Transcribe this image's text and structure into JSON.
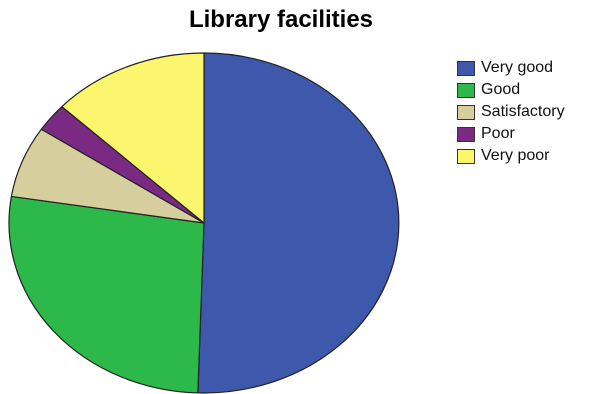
{
  "chart_data": {
    "type": "pie",
    "title": "Library facilities",
    "categories": [
      "Very good",
      "Good",
      "Satisfactory",
      "Poor",
      "Very poor"
    ],
    "values": [
      50.5,
      27.0,
      6.8,
      2.7,
      13.0
    ],
    "colors": [
      "#3e58ac",
      "#2db84a",
      "#d6cf9d",
      "#7a2a82",
      "#fbf66e"
    ],
    "legend_position": "right"
  }
}
